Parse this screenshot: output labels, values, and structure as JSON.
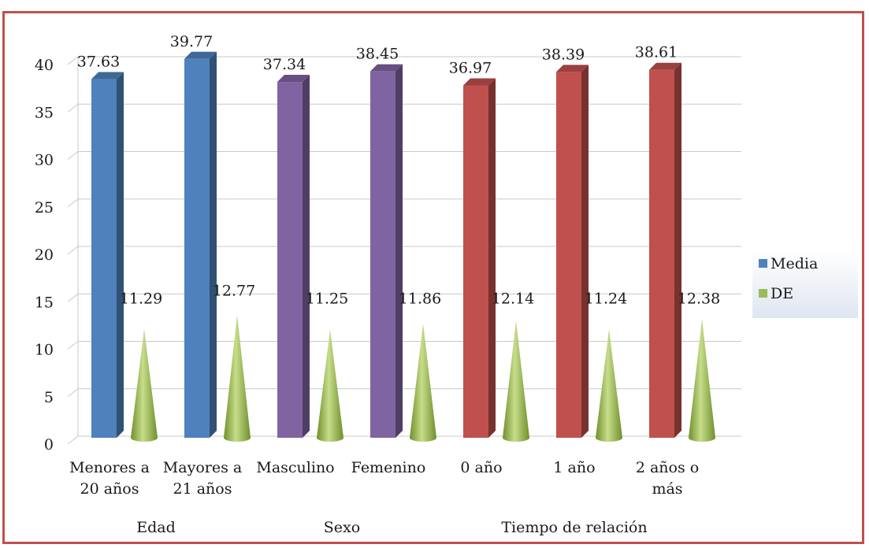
{
  "chart_data": {
    "type": "bar",
    "categories": [
      "Menores a 20 años",
      "Mayores a 21 años",
      "Masculino",
      "Femenino",
      "0 año",
      "1 año",
      "2 años o más"
    ],
    "category_lines": [
      [
        "Menores a",
        "20 años"
      ],
      [
        "Mayores a",
        "21 años"
      ],
      [
        "Masculino"
      ],
      [
        "Femenino"
      ],
      [
        "0 año"
      ],
      [
        "1 año"
      ],
      [
        "2 años o",
        "más"
      ]
    ],
    "groups": [
      {
        "label": "Edad",
        "categories": [
          0,
          1
        ]
      },
      {
        "label": "Sexo",
        "categories": [
          2,
          3
        ]
      },
      {
        "label": "Tiempo de relación",
        "categories": [
          4,
          5,
          6
        ]
      }
    ],
    "series": [
      {
        "name": "Media",
        "values": [
          37.63,
          39.77,
          37.34,
          38.45,
          36.97,
          38.39,
          38.61
        ],
        "labels": [
          "37.63",
          "39.77",
          "37.34",
          "38.45",
          "36.97",
          "38.39",
          "38.61"
        ]
      },
      {
        "name": "DE",
        "values": [
          11.29,
          12.77,
          11.25,
          11.86,
          12.14,
          11.24,
          12.38
        ],
        "labels": [
          "11.29",
          "12.77",
          "11.25",
          "11.86",
          "12.14",
          "11.24",
          "12.38"
        ]
      }
    ],
    "ylim": [
      0,
      40
    ],
    "yticks": [
      0,
      5,
      10,
      15,
      20,
      25,
      30,
      35,
      40
    ],
    "grid": true,
    "legend": "right",
    "colors": {
      "edad": "#4f81bd",
      "sexo": "#8064a2",
      "tiempo": "#c0504d",
      "de": "#9bbb59",
      "legend_media": "#4f81bd",
      "legend_de": "#9bbb59"
    },
    "category_colors": [
      "edad",
      "edad",
      "sexo",
      "sexo",
      "tiempo",
      "tiempo",
      "tiempo"
    ]
  }
}
